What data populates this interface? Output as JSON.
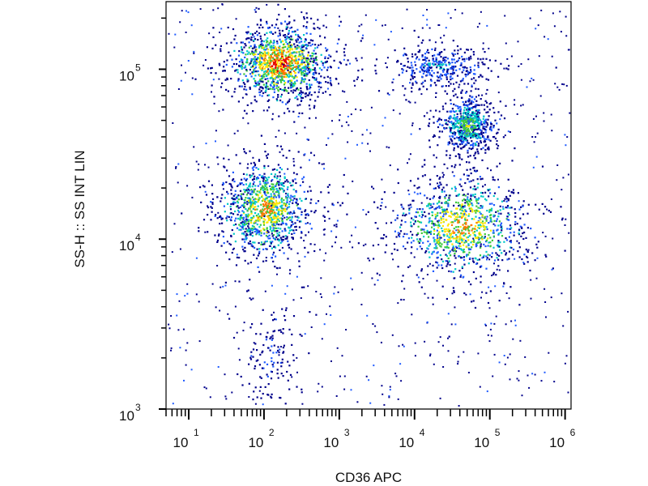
{
  "chart_data": {
    "type": "scatter",
    "subtype": "flow-cytometry density dot plot",
    "xlabel": "CD36 APC",
    "ylabel": "SS-H :: SS INT LIN",
    "xscale": "log",
    "yscale": "log",
    "xlim": [
      5,
      1200000
    ],
    "ylim": [
      1000,
      250000
    ],
    "x_ticks": [
      {
        "value": 10,
        "base": "10",
        "exp": "1"
      },
      {
        "value": 100,
        "base": "10",
        "exp": "2"
      },
      {
        "value": 1000,
        "base": "10",
        "exp": "3"
      },
      {
        "value": 10000,
        "base": "10",
        "exp": "4"
      },
      {
        "value": 100000,
        "base": "10",
        "exp": "5"
      },
      {
        "value": 1000000,
        "base": "10",
        "exp": "6"
      }
    ],
    "y_ticks": [
      {
        "value": 1000,
        "base": "10",
        "exp": "3"
      },
      {
        "value": 10000,
        "base": "10",
        "exp": "4"
      },
      {
        "value": 100000,
        "base": "10",
        "exp": "5"
      }
    ],
    "color_scale": [
      "#00008b",
      "#1e5aff",
      "#00c8c8",
      "#3cc83c",
      "#ffe600",
      "#ff7800",
      "#e60000"
    ],
    "populations": [
      {
        "x": 160,
        "y": 110000,
        "weight": 0.9
      },
      {
        "x": 100,
        "y": 15000,
        "weight": 0.75
      },
      {
        "x": 40000,
        "y": 12000,
        "weight": 0.75
      },
      {
        "x": 50000,
        "y": 47000,
        "weight": 0.5
      },
      {
        "x": 20000,
        "y": 105000,
        "weight": 0.25
      },
      {
        "x": 120,
        "y": 2000,
        "weight": 0.1
      }
    ],
    "grid": false,
    "legend": "none"
  }
}
